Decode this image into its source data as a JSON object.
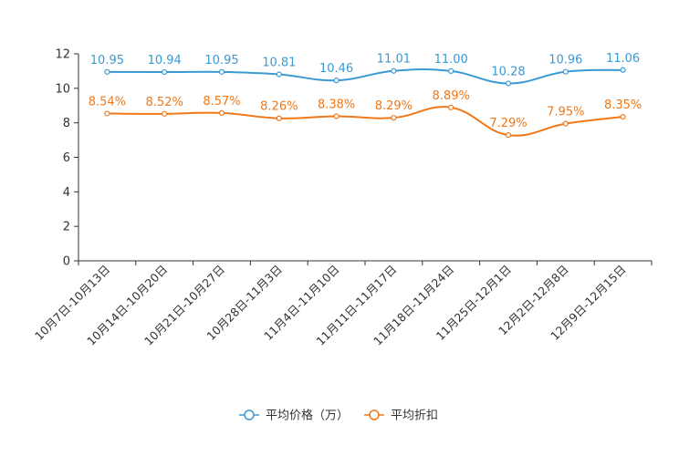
{
  "chart_data": {
    "type": "line",
    "title": "",
    "xlabel": "",
    "ylabel": "",
    "ylim": [
      0,
      12
    ],
    "yticks": [
      0,
      2,
      4,
      6,
      8,
      10,
      12
    ],
    "categories": [
      "10月7日-10月13日",
      "10月14日-10月20日",
      "10月21日-10月27日",
      "10月28日-11月3日",
      "11月4日-11月10日",
      "11月11日-11月17日",
      "11月18日-11月24日",
      "11月25日-12月1日",
      "12月2日-12月8日",
      "12月9日-12月15日"
    ],
    "series": [
      {
        "name": "平均价格（万）",
        "color": "#3a9ad4",
        "values": [
          10.95,
          10.94,
          10.95,
          10.81,
          10.46,
          11.01,
          11.0,
          10.28,
          10.96,
          11.06
        ],
        "labels": [
          "10.95",
          "10.94",
          "10.95",
          "10.81",
          "10.46",
          "11.01",
          "11.00",
          "10.28",
          "10.96",
          "11.06"
        ]
      },
      {
        "name": "平均折扣",
        "color": "#f07818",
        "values": [
          8.54,
          8.52,
          8.57,
          8.26,
          8.38,
          8.29,
          8.89,
          7.29,
          7.95,
          8.35
        ],
        "labels": [
          "8.54%",
          "8.52%",
          "8.57%",
          "8.26%",
          "8.38%",
          "8.29%",
          "8.89%",
          "7.29%",
          "7.95%",
          "8.35%"
        ]
      }
    ],
    "legend": "bottom-center"
  }
}
